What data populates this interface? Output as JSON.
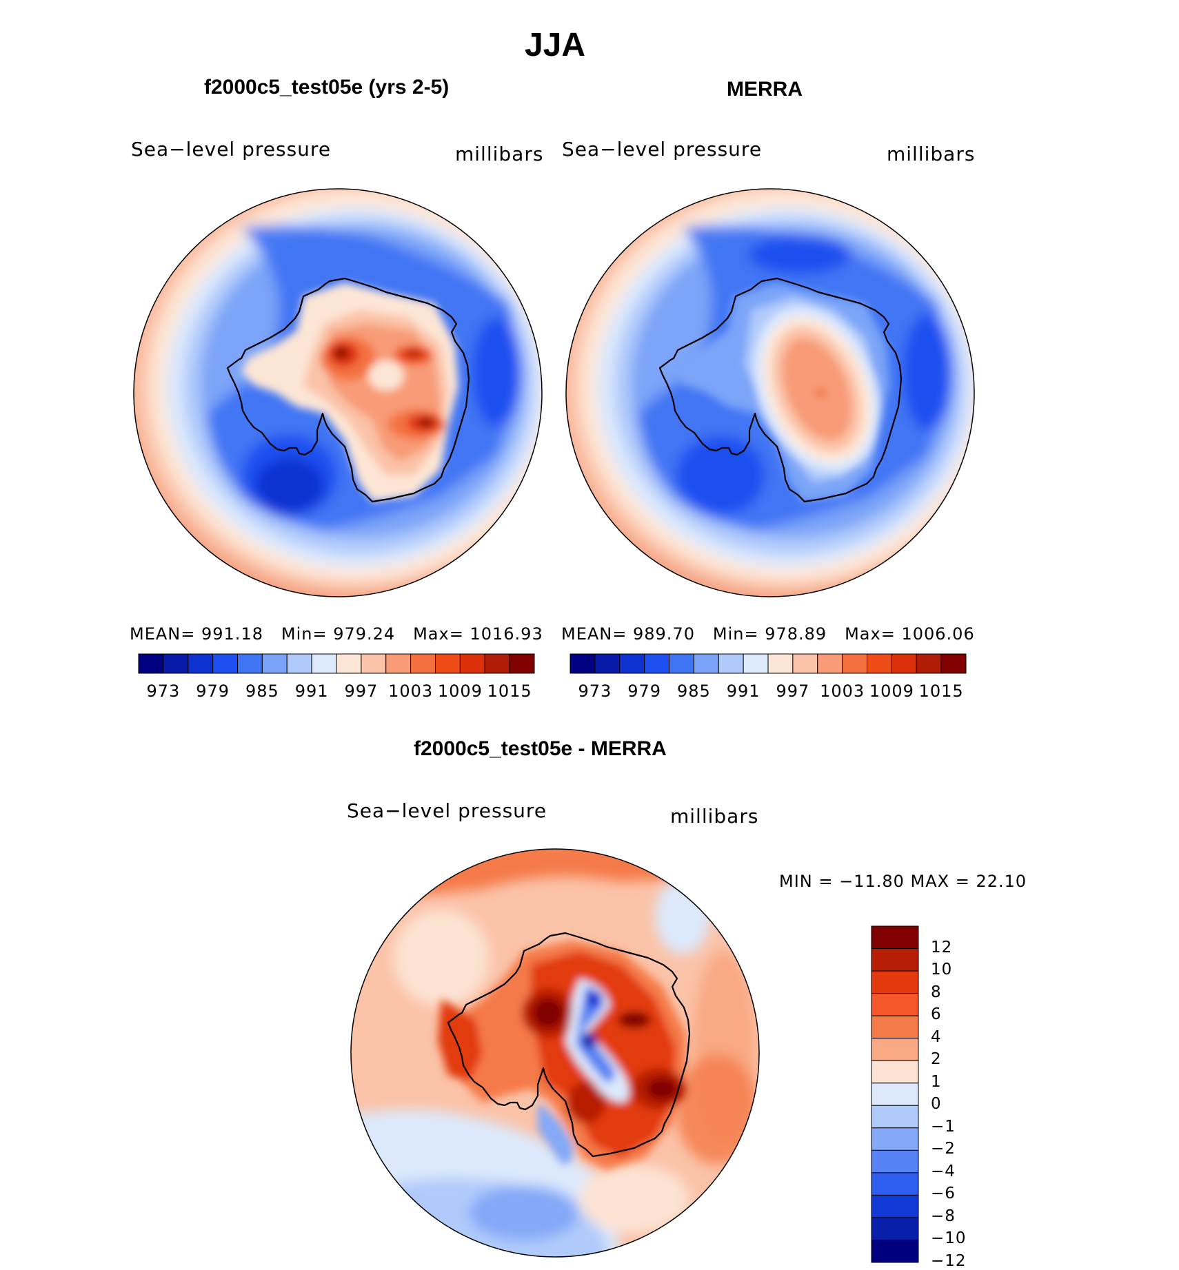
{
  "title": "JJA",
  "panels": [
    {
      "name": "model",
      "title": "f2000c5_test05e (yrs 2-5)",
      "variable": "Sea−level pressure",
      "units": "millibars",
      "mean_label": "MEAN=",
      "mean": "991.18",
      "min_label": "Min=",
      "min": "979.24",
      "max_label": "Max=",
      "max": "1016.93"
    },
    {
      "name": "obs",
      "title": "MERRA",
      "variable": "Sea−level pressure",
      "units": "millibars",
      "mean_label": "MEAN=",
      "mean": "989.70",
      "min_label": "Min=",
      "min": "978.89",
      "max_label": "Max=",
      "max": "1006.06"
    }
  ],
  "diff_panel": {
    "title": "f2000c5_test05e - MERRA",
    "variable": "Sea−level pressure",
    "units": "millibars",
    "minmax": "MIN = −11.80 MAX =   22.10"
  },
  "colors": {
    "slp": [
      "#000080",
      "#0a1aa8",
      "#0e32d0",
      "#1e4ff0",
      "#3f74f3",
      "#7ba4f8",
      "#b0cbfb",
      "#dde9fd",
      "#fde6d6",
      "#fbc3a8",
      "#f89b76",
      "#f4713f",
      "#ee4c19",
      "#db3009",
      "#b01d06",
      "#800000"
    ],
    "diff": [
      "#800000",
      "#b81e06",
      "#e23a0c",
      "#f5562a",
      "#f57a49",
      "#f9a983",
      "#fde3d3",
      "#dce9fc",
      "#b0cbfb",
      "#84a9f8",
      "#5682f3",
      "#2f5ff0",
      "#1238d6",
      "#081eaa",
      "#00007f"
    ]
  },
  "chart_data": [
    {
      "type": "contour-map",
      "title": "f2000c5_test05e (yrs 2-5)",
      "variable": "Sea-level pressure",
      "units": "millibars",
      "projection": "south polar stereographic",
      "colorbar_ticks": [
        "973",
        "979",
        "985",
        "991",
        "997",
        "1003",
        "1009",
        "1015"
      ],
      "mean": 991.18,
      "min": 979.24,
      "max": 1016.93
    },
    {
      "type": "contour-map",
      "title": "MERRA",
      "variable": "Sea-level pressure",
      "units": "millibars",
      "projection": "south polar stereographic",
      "colorbar_ticks": [
        "973",
        "979",
        "985",
        "991",
        "997",
        "1003",
        "1009",
        "1015"
      ],
      "mean": 989.7,
      "min": 978.89,
      "max": 1006.06
    },
    {
      "type": "contour-map",
      "title": "f2000c5_test05e - MERRA",
      "variable": "Sea-level pressure",
      "units": "millibars",
      "projection": "south polar stereographic",
      "colorbar_ticks": [
        "12",
        "10",
        "8",
        "6",
        "4",
        "2",
        "1",
        "0",
        "−1",
        "−2",
        "−4",
        "−6",
        "−8",
        "−10",
        "−12"
      ],
      "min": -11.8,
      "max": 22.1
    }
  ]
}
